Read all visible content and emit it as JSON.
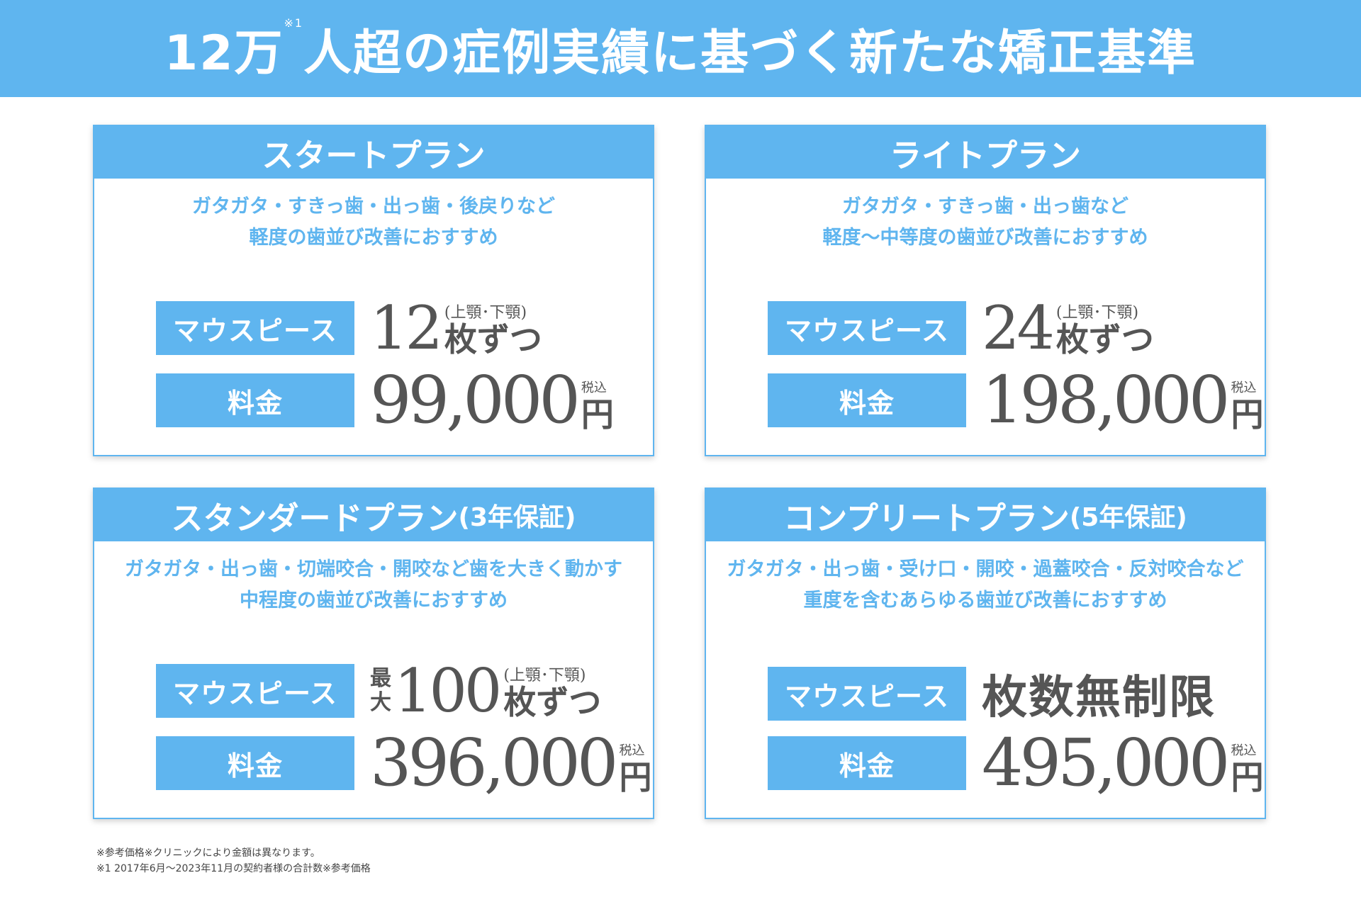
{
  "banner": {
    "title_pre": "12万",
    "title_sup": "※1",
    "title_post": "人超の症例実績に基づく新たな矯正基準"
  },
  "labels": {
    "mouthpiece": "マウスピース",
    "fee": "料金",
    "jaw_note": "(上顎･下顎)",
    "per_unit": "枚ずつ",
    "tax": "税込",
    "yen": "円",
    "max_top": "最",
    "max_bottom": "大"
  },
  "plans": [
    {
      "name": "スタートプラン",
      "guarantee": "",
      "desc_line1": "ガタガタ・すきっ歯・出っ歯・後戻りなど",
      "desc_line2": "軽度の歯並び改善におすすめ",
      "count": "12",
      "price": "99,000"
    },
    {
      "name": "ライトプラン",
      "guarantee": "",
      "desc_line1": "ガタガタ・すきっ歯・出っ歯など",
      "desc_line2": "軽度〜中等度の歯並び改善におすすめ",
      "count": "24",
      "price": "198,000"
    },
    {
      "name": "スタンダードプラン",
      "guarantee": "(3年保証)",
      "desc_line1": "ガタガタ・出っ歯・切端咬合・開咬など歯を大きく動かす",
      "desc_line2": "中程度の歯並び改善におすすめ",
      "count": "100",
      "price": "396,000"
    },
    {
      "name": "コンプリートプラン",
      "guarantee": "(5年保証)",
      "desc_line1": "ガタガタ・出っ歯・受け口・開咬・過蓋咬合・反対咬合など",
      "desc_line2": "重度を含むあらゆる歯並び改善におすすめ",
      "count_text": "枚数無制限",
      "price": "495,000"
    }
  ],
  "footnotes": {
    "line1": "※参考価格※クリニックにより金額は異なります。",
    "line2": "※1 2017年6月〜2023年11月の契約者様の合計数※参考価格"
  },
  "colors": {
    "accent": "#5fb5ef",
    "text_dark": "#555555"
  }
}
